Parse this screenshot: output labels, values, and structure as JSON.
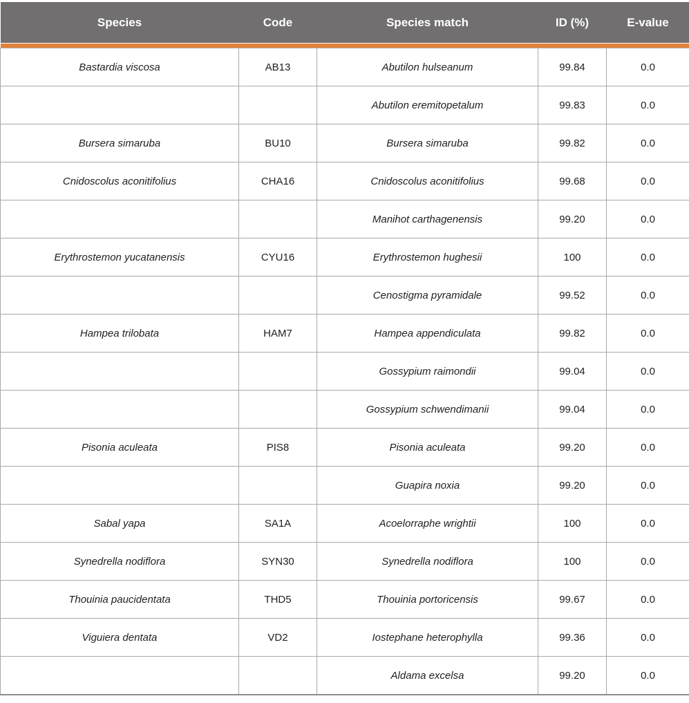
{
  "colors": {
    "header_bg": "#716f6f",
    "accent": "#e2813a",
    "border": "#a9a9a9",
    "outer_border": "#8c8c8c",
    "header_text": "#ffffff",
    "body_text": "#1f1f1f"
  },
  "table": {
    "columns": [
      {
        "label": "Species"
      },
      {
        "label": "Code"
      },
      {
        "label": "Species match"
      },
      {
        "label": "ID (%)"
      },
      {
        "label": "E-value"
      }
    ],
    "rows": [
      {
        "species": "Bastardia viscosa",
        "code": "AB13",
        "match": "Abutilon hulseanum",
        "id": "99.84",
        "evalue": "0.0"
      },
      {
        "species": "",
        "code": "",
        "match": "Abutilon eremitopetalum",
        "id": "99.83",
        "evalue": "0.0"
      },
      {
        "species": "Bursera simaruba",
        "code": "BU10",
        "match": "Bursera simaruba",
        "id": "99.82",
        "evalue": "0.0"
      },
      {
        "species": "Cnidoscolus aconitifolius",
        "code": "CHA16",
        "match": "Cnidoscolus aconitifolius",
        "id": "99.68",
        "evalue": "0.0"
      },
      {
        "species": "",
        "code": "",
        "match": "Manihot carthagenensis",
        "id": "99.20",
        "evalue": "0.0"
      },
      {
        "species": "Erythrostemon yucatanensis",
        "code": "CYU16",
        "match": "Erythrostemon hughesii",
        "id": "100",
        "evalue": "0.0"
      },
      {
        "species": "",
        "code": "",
        "match": "Cenostigma pyramidale",
        "id": "99.52",
        "evalue": "0.0"
      },
      {
        "species": "Hampea trilobata",
        "code": "HAM7",
        "match": "Hampea appendiculata",
        "id": "99.82",
        "evalue": "0.0"
      },
      {
        "species": "",
        "code": "",
        "match": "Gossypium raimondii",
        "id": "99.04",
        "evalue": "0.0"
      },
      {
        "species": "",
        "code": "",
        "match": "Gossypium schwendimanii",
        "id": "99.04",
        "evalue": "0.0"
      },
      {
        "species": "Pisonia aculeata",
        "code": "PIS8",
        "match": "Pisonia aculeata",
        "id": "99.20",
        "evalue": "0.0"
      },
      {
        "species": "",
        "code": "",
        "match": "Guapira noxia",
        "id": "99.20",
        "evalue": "0.0"
      },
      {
        "species": "Sabal yapa",
        "code": "SA1A",
        "match": "Acoelorraphe wrightii",
        "id": "100",
        "evalue": "0.0"
      },
      {
        "species": "Synedrella nodiflora",
        "code": "SYN30",
        "match": "Synedrella nodiflora",
        "id": "100",
        "evalue": "0.0"
      },
      {
        "species": "Thouinia paucidentata",
        "code": "THD5",
        "match": "Thouinia portoricensis",
        "id": "99.67",
        "evalue": "0.0"
      },
      {
        "species": "Viguiera dentata",
        "code": "VD2",
        "match": "Iostephane heterophylla",
        "id": "99.36",
        "evalue": "0.0"
      },
      {
        "species": "",
        "code": "",
        "match": "Aldama excelsa",
        "id": "99.20",
        "evalue": "0.0"
      }
    ]
  }
}
